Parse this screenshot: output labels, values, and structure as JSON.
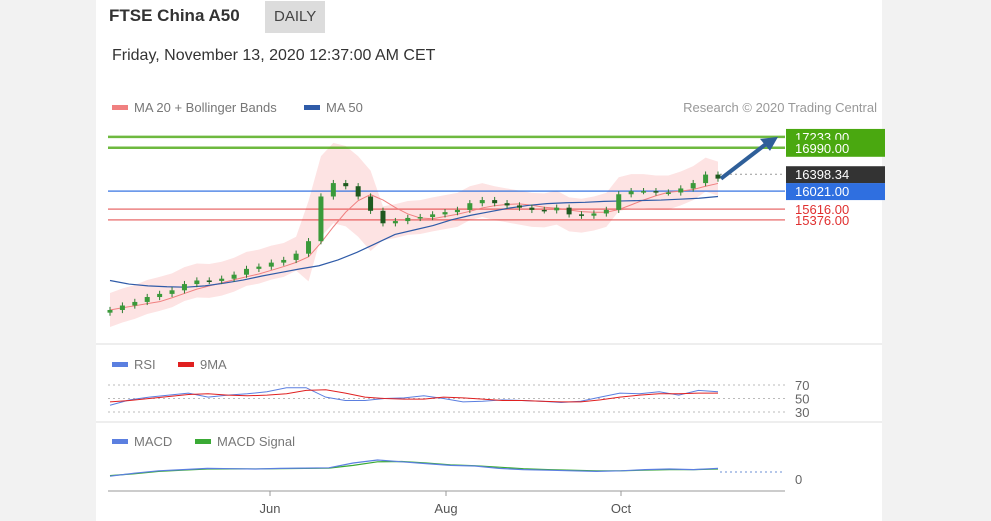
{
  "header": {
    "title": "FTSE China A50",
    "badge": "DAILY",
    "datetime": "Friday, November 13, 2020 12:37:00 AM CET"
  },
  "main_panel": {
    "legend": [
      {
        "label": "MA 20 + Bollinger Bands",
        "color": "#f08080"
      },
      {
        "label": "MA 50",
        "color": "#2f5ba8"
      }
    ],
    "credit": "Research © 2020 Trading Central"
  },
  "rsi_panel": {
    "legend": [
      {
        "label": "RSI",
        "color": "#5b7fe0"
      },
      {
        "label": "9MA",
        "color": "#e02020"
      }
    ],
    "levels": [
      "70",
      "50",
      "30"
    ]
  },
  "macd_panel": {
    "legend": [
      {
        "label": "MACD",
        "color": "#5b7fe0"
      },
      {
        "label": "MACD Signal",
        "color": "#3aaa35"
      }
    ],
    "zero_label": "0"
  },
  "chart_data": {
    "type": "line",
    "title": "FTSE China A50",
    "x_ticks": [
      "Jun",
      "Aug",
      "Oct"
    ],
    "price_levels": [
      {
        "label": "17233.00",
        "value": 17233.0,
        "kind": "target",
        "color": "#4aa810"
      },
      {
        "label": "16990.00",
        "value": 16990.0,
        "kind": "resistance",
        "color": "#4aa810"
      },
      {
        "label": "16398.34",
        "value": 16398.34,
        "kind": "last",
        "color": "#333333"
      },
      {
        "label": "16021.00",
        "value": 16021.0,
        "kind": "pivot",
        "color": "#2f6fe0"
      },
      {
        "label": "15616.00",
        "value": 15616.0,
        "kind": "support",
        "color": "#e03030"
      },
      {
        "label": "15376.00",
        "value": 15376.0,
        "kind": "support",
        "color": "#e03030"
      }
    ],
    "price_series": [
      13360,
      13460,
      13540,
      13650,
      13720,
      13800,
      13940,
      14020,
      14010,
      14060,
      14150,
      14280,
      14330,
      14420,
      14480,
      14620,
      14900,
      15900,
      16200,
      16130,
      15900,
      15580,
      15300,
      15350,
      15420,
      15440,
      15500,
      15550,
      15600,
      15750,
      15820,
      15750,
      15700,
      15650,
      15600,
      15590,
      15650,
      15500,
      15470,
      15520,
      15600,
      15950,
      16020,
      16020,
      15990,
      15990,
      16080,
      16200,
      16390,
      16300
    ],
    "ma50_series": [
      14020,
      13940,
      13900,
      13880,
      13870,
      13900,
      13960,
      14030,
      14120,
      14200,
      14280,
      14350,
      14480,
      14650,
      14850,
      15050,
      15150,
      15250,
      15380,
      15480,
      15560,
      15640,
      15700,
      15740,
      15760,
      15770,
      15790,
      15800,
      15810,
      15820,
      15840,
      15860,
      15900
    ],
    "rsi_series": [
      40,
      48,
      52,
      55,
      58,
      52,
      55,
      57,
      60,
      66,
      66,
      52,
      47,
      47,
      50,
      51,
      54,
      50,
      45,
      46,
      48,
      47,
      46,
      44,
      46,
      52,
      58,
      57,
      60,
      55,
      62,
      60
    ],
    "rsi_ma_series": [
      45,
      47,
      50,
      53,
      56,
      57,
      55,
      54,
      55,
      57,
      62,
      63,
      58,
      52,
      50,
      49,
      49,
      52,
      51,
      49,
      47,
      47,
      46,
      45,
      45,
      48,
      52,
      55,
      57,
      57,
      58,
      58
    ],
    "macd_series": [
      -70,
      -20,
      20,
      40,
      60,
      55,
      50,
      60,
      65,
      70,
      150,
      200,
      170,
      140,
      110,
      100,
      60,
      40,
      30,
      20,
      10,
      20,
      40,
      50,
      40,
      60
    ],
    "macd_signal_series": [
      -60,
      -30,
      10,
      30,
      50,
      52,
      51,
      55,
      60,
      65,
      110,
      170,
      175,
      150,
      120,
      105,
      80,
      55,
      40,
      30,
      20,
      20,
      30,
      40,
      40,
      50
    ]
  }
}
